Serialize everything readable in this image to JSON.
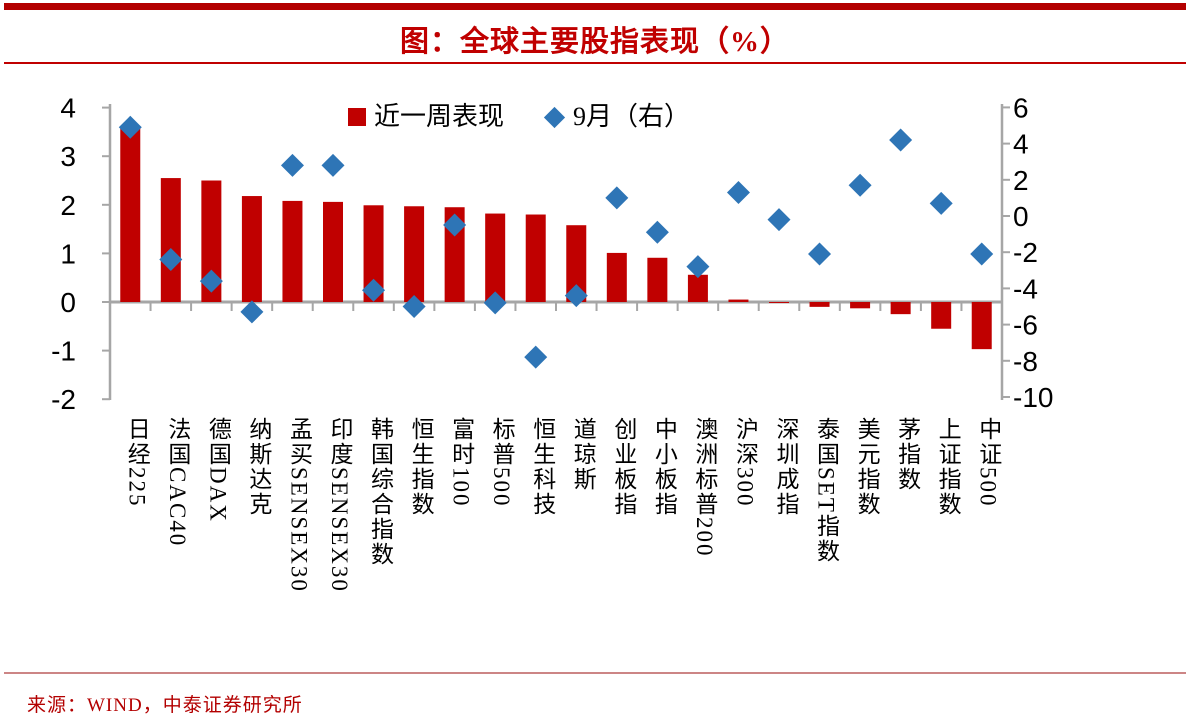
{
  "title": "图：全球主要股指表现（%）",
  "source_note": "来源：WIND，中泰证券研究所",
  "legend": {
    "items": [
      {
        "label": "近一周表现",
        "marker": "square",
        "color": "#c00000"
      },
      {
        "label": "9月（右）",
        "marker": "diamond",
        "color": "#2e75b6"
      }
    ]
  },
  "colors": {
    "bar": "#c00000",
    "diamond": "#2e75b6",
    "axis": "#a6a6a6",
    "tick_text": "#000000"
  },
  "chart_data": {
    "type": "bar",
    "title": "图：全球主要股指表现（%）",
    "unit": "%",
    "grid": false,
    "legend_position": "top-center",
    "categories": [
      "日经225",
      "法国CAC40",
      "德国DAX",
      "纳斯达克",
      "孟买SENSEX30",
      "印度SENSEX30",
      "韩国综合指数",
      "恒生指数",
      "富时100",
      "标普500",
      "恒生科技",
      "道琼斯",
      "创业板指",
      "中小板指",
      "澳洲标普200",
      "沪深300",
      "深圳成指",
      "泰国SET指数",
      "美元指数",
      "茅指数",
      "上证指数",
      "中证500"
    ],
    "series": [
      {
        "name": "近一周表现",
        "type": "bar",
        "axis": "left",
        "color": "#c00000",
        "values": [
          3.6,
          2.55,
          2.5,
          2.18,
          2.08,
          2.06,
          1.99,
          1.97,
          1.95,
          1.82,
          1.8,
          1.58,
          1.01,
          0.91,
          0.56,
          0.05,
          -0.02,
          -0.1,
          -0.13,
          -0.25,
          -0.55,
          -0.97
        ]
      },
      {
        "name": "9月（右）",
        "type": "scatter",
        "marker": "diamond",
        "axis": "right",
        "color": "#2e75b6",
        "values": [
          4.9,
          -2.4,
          -3.6,
          -5.3,
          2.8,
          2.8,
          -4.1,
          -5.0,
          -0.5,
          -4.8,
          -7.8,
          -4.4,
          1.0,
          -0.9,
          -2.8,
          1.3,
          -0.2,
          -2.1,
          1.7,
          4.2,
          0.7,
          -2.1
        ]
      }
    ],
    "left_axis": {
      "min": -2,
      "max": 4,
      "ticks": [
        4,
        3,
        2,
        1,
        0,
        -1,
        -2
      ]
    },
    "right_axis": {
      "min": -10,
      "max": 6,
      "ticks": [
        6,
        4,
        2,
        0,
        -2,
        -4,
        -6,
        -8,
        -10
      ]
    }
  }
}
